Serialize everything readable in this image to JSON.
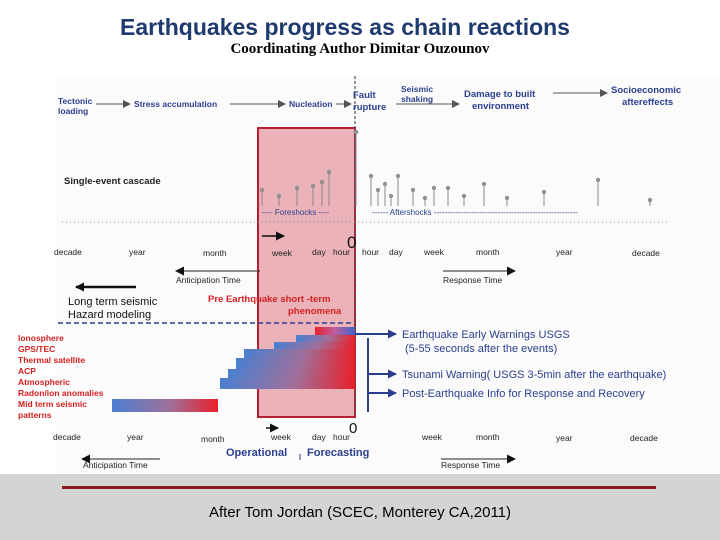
{
  "title": "Earthquakes progress as chain reactions",
  "subtitle": "Coordinating Author  Dimitar Ouzounov",
  "chain": {
    "tectonic_loading": [
      "Tectonic",
      "loading"
    ],
    "stress_accumulation": "Stress accumulation",
    "nucleation": "Nucleation",
    "fault_rupture": [
      "Fault",
      "rupture"
    ],
    "seismic_shaking": [
      "Seismic",
      "shaking"
    ],
    "damage": [
      "Damage to built",
      "environment"
    ],
    "socioeconomic": [
      "Socioeconomic",
      "aftereffects"
    ]
  },
  "single_event_cascade": "Single-event cascade",
  "foreshocks_label": "---- Foreshocks ----",
  "aftershocks_label": "------ Aftershocks ------------------------------------------------------",
  "zero": "0",
  "timescale_top": {
    "left": [
      "decade",
      "year",
      "month",
      "week",
      "day",
      "hour"
    ],
    "right": [
      "hour",
      "day",
      "week",
      "month",
      "year",
      "decade"
    ]
  },
  "timescale_bottom": {
    "left": [
      "decade",
      "year",
      "month",
      "week",
      "day",
      "hour"
    ],
    "right": [
      "week",
      "month",
      "year",
      "decade"
    ]
  },
  "anticipation_time": "Anticipation Time",
  "response_time": "Response Time",
  "long_term": [
    "Long term seismic",
    "Hazard modeling"
  ],
  "pre_eq": [
    "Pre Earthquake short -term",
    "phenomena"
  ],
  "precursors": [
    "Ionosphere",
    "GPS/TEC",
    "Thermal satellite",
    "ACP",
    "Atmospheric",
    "Radon/ion anomalies",
    "Mid term seismic",
    "patterns"
  ],
  "outcomes": {
    "early_warning": [
      "Earthquake Early Warnings USGS",
      "(5-55 seconds after the  events)"
    ],
    "tsunami": "Tsunami Warning( USGS 3-5min  after the earthquake)",
    "post_eq": "Post-Earthquake Info for Response and Recovery"
  },
  "operational": "Operational",
  "forecasting": "Forecasting",
  "credit": "After Tom Jordan (SCEC, Monterey CA,2011)",
  "colors": {
    "title": "#1f3a6e",
    "blue_text": "#2a3f8f",
    "red_text": "#d42020",
    "highlight": "#e8a6ad",
    "highlight_border": "#b52030",
    "footer_line": "#8b1a1a"
  }
}
